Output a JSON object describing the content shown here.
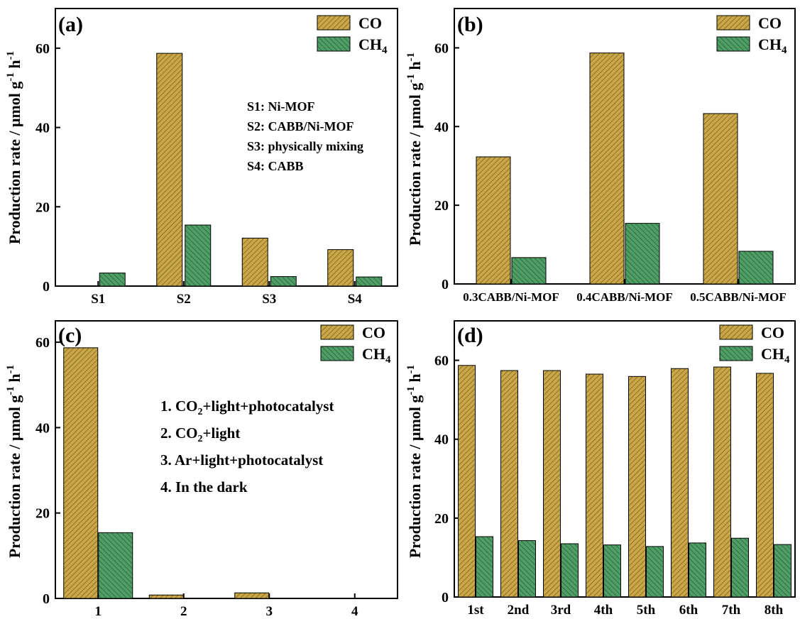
{
  "colors": {
    "co": "#c9a648",
    "ch4": "#4f9e66",
    "co_hatch": "#6b5716",
    "ch4_hatch": "#1f5530"
  },
  "ylabel_main": "Production rate / μmol g",
  "ylabel_sup": "-1",
  "ylabel_h": " h",
  "legend": {
    "co": "CO",
    "ch4_main": "CH",
    "ch4_sub": "4"
  },
  "chart_data": [
    {
      "type": "bar",
      "panel": "(a)",
      "categories": [
        "S1",
        "S2",
        "S3",
        "S4"
      ],
      "series": [
        {
          "name": "CO",
          "values": [
            0,
            58.7,
            12.1,
            9.2
          ]
        },
        {
          "name": "CH4",
          "values": [
            3.3,
            15.4,
            2.4,
            2.3
          ]
        }
      ],
      "ylim": [
        0,
        70
      ],
      "yticks": [
        0,
        20,
        40,
        60
      ],
      "legend_position": "top-right",
      "annotations": [
        "S1: Ni-MOF",
        "S2: CABB/Ni-MOF",
        "S3: physically mixing",
        "S4: CABB"
      ]
    },
    {
      "type": "bar",
      "panel": "(b)",
      "categories": [
        "0.3CABB/Ni-MOF",
        "0.4CABB/Ni-MOF",
        "0.5CABB/Ni-MOF"
      ],
      "series": [
        {
          "name": "CO",
          "values": [
            32.3,
            58.7,
            43.3
          ]
        },
        {
          "name": "CH4",
          "values": [
            6.7,
            15.4,
            8.3
          ]
        }
      ],
      "ylim": [
        0,
        70
      ],
      "yticks": [
        0,
        20,
        40,
        60
      ],
      "legend_position": "top-right",
      "annotations": []
    },
    {
      "type": "bar",
      "panel": "(c)",
      "categories": [
        "1",
        "2",
        "3",
        "4"
      ],
      "series": [
        {
          "name": "CO",
          "values": [
            58.7,
            0.8,
            1.3,
            0
          ]
        },
        {
          "name": "CH4",
          "values": [
            15.4,
            0,
            0,
            0
          ]
        }
      ],
      "ylim": [
        0,
        65
      ],
      "yticks": [
        0,
        20,
        40,
        60
      ],
      "legend_position": "top-right",
      "annotations": [
        {
          "parts": [
            [
              "1. CO",
              ""
            ],
            [
              "2",
              "sub"
            ],
            [
              "+light+photocatalyst",
              ""
            ]
          ]
        },
        {
          "parts": [
            [
              "2. CO",
              ""
            ],
            [
              "2",
              "sub"
            ],
            [
              "+light",
              ""
            ]
          ]
        },
        {
          "parts": [
            [
              "3. Ar+light+photocatalyst",
              ""
            ]
          ]
        },
        {
          "parts": [
            [
              "4. In the dark",
              ""
            ]
          ]
        }
      ]
    },
    {
      "type": "bar",
      "panel": "(d)",
      "categories": [
        "1st",
        "2nd",
        "3rd",
        "4th",
        "5th",
        "6th",
        "7th",
        "8th"
      ],
      "series": [
        {
          "name": "CO",
          "values": [
            58.7,
            57.4,
            57.4,
            56.5,
            55.9,
            57.9,
            58.3,
            56.7
          ]
        },
        {
          "name": "CH4",
          "values": [
            15.3,
            14.3,
            13.5,
            13.2,
            12.8,
            13.7,
            14.9,
            13.3
          ]
        }
      ],
      "ylim": [
        0,
        70
      ],
      "yticks": [
        0,
        20,
        40,
        60
      ],
      "legend_position": "top-right",
      "annotations": []
    }
  ]
}
